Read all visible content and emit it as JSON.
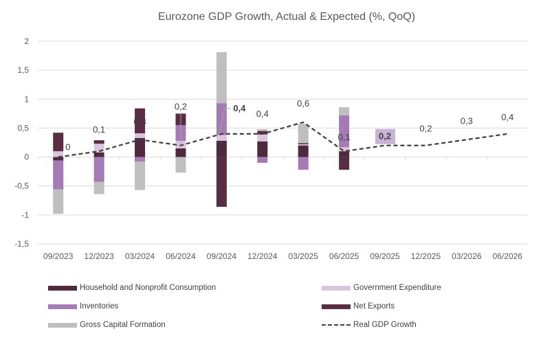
{
  "chart_data": {
    "type": "bar",
    "stacked": true,
    "title": "Eurozone GDP Growth, Actual & Expected (%, QoQ)",
    "xlabel": "",
    "ylabel": "",
    "ylim": [
      -1.5,
      2
    ],
    "yticks": [
      "-1,5",
      "-1",
      "-0,5",
      "0",
      "0,5",
      "1",
      "1,5",
      "2"
    ],
    "ytick_values": [
      -1.5,
      -1,
      -0.5,
      0,
      0.5,
      1,
      1.5,
      2
    ],
    "grid": true,
    "legend_position": "bottom",
    "categories": [
      "09/2023",
      "12/2023",
      "03/2024",
      "06/2024",
      "09/2024",
      "12/2024",
      "03/2025",
      "06/2025",
      "09/2025",
      "12/2025",
      "03/2026",
      "06/2026"
    ],
    "series": [
      {
        "name": "Household and Nonprofit Consumption",
        "kind": "bar",
        "color": "#4e2a3c",
        "values": [
          -0.06,
          0.08,
          0.33,
          0.15,
          0.28,
          0.27,
          0.2,
          0.1,
          null,
          null,
          null,
          null
        ]
      },
      {
        "name": "Government Expenditure",
        "kind": "bar",
        "color": "#d9c6de",
        "values": [
          0.1,
          0.15,
          0.08,
          0.13,
          0.1,
          0.12,
          0.02,
          0.07,
          null,
          null,
          null,
          null
        ]
      },
      {
        "name": "Inventories",
        "kind": "bar",
        "color": "#a47bb5",
        "values": [
          -0.5,
          -0.43,
          -0.08,
          0.27,
          0.55,
          -0.1,
          -0.22,
          0.55,
          null,
          null,
          null,
          null
        ]
      },
      {
        "name": "Net Exports",
        "kind": "bar",
        "color": "#5a2d42",
        "values": [
          0.32,
          0.06,
          0.43,
          0.2,
          -0.86,
          0.06,
          0.02,
          -0.22,
          null,
          null,
          null,
          null
        ]
      },
      {
        "name": "Gross Capital Formation",
        "kind": "bar",
        "color": "#bfbfbf",
        "values": [
          -0.42,
          -0.21,
          -0.49,
          -0.27,
          0.88,
          0.03,
          0.33,
          0.14,
          null,
          null,
          null,
          null
        ]
      },
      {
        "name": "Real GDP Growth",
        "kind": "line",
        "style": "dashed",
        "color": "#404040",
        "values": [
          0,
          0.1,
          0.3,
          0.2,
          0.4,
          0.4,
          0.6,
          0.1,
          0.2,
          0.2,
          0.3,
          0.4
        ]
      }
    ],
    "data_labels": [
      "0",
      "0,1",
      "0,3",
      "0,2",
      "0,4",
      "0,4",
      "0,6",
      "0,1",
      "0,2",
      "0,2",
      "0,3",
      "0,4"
    ],
    "highlighted_labels": {
      "4": "bold",
      "8": "boxed"
    },
    "highlight_box_color": "#c9b3d6"
  }
}
